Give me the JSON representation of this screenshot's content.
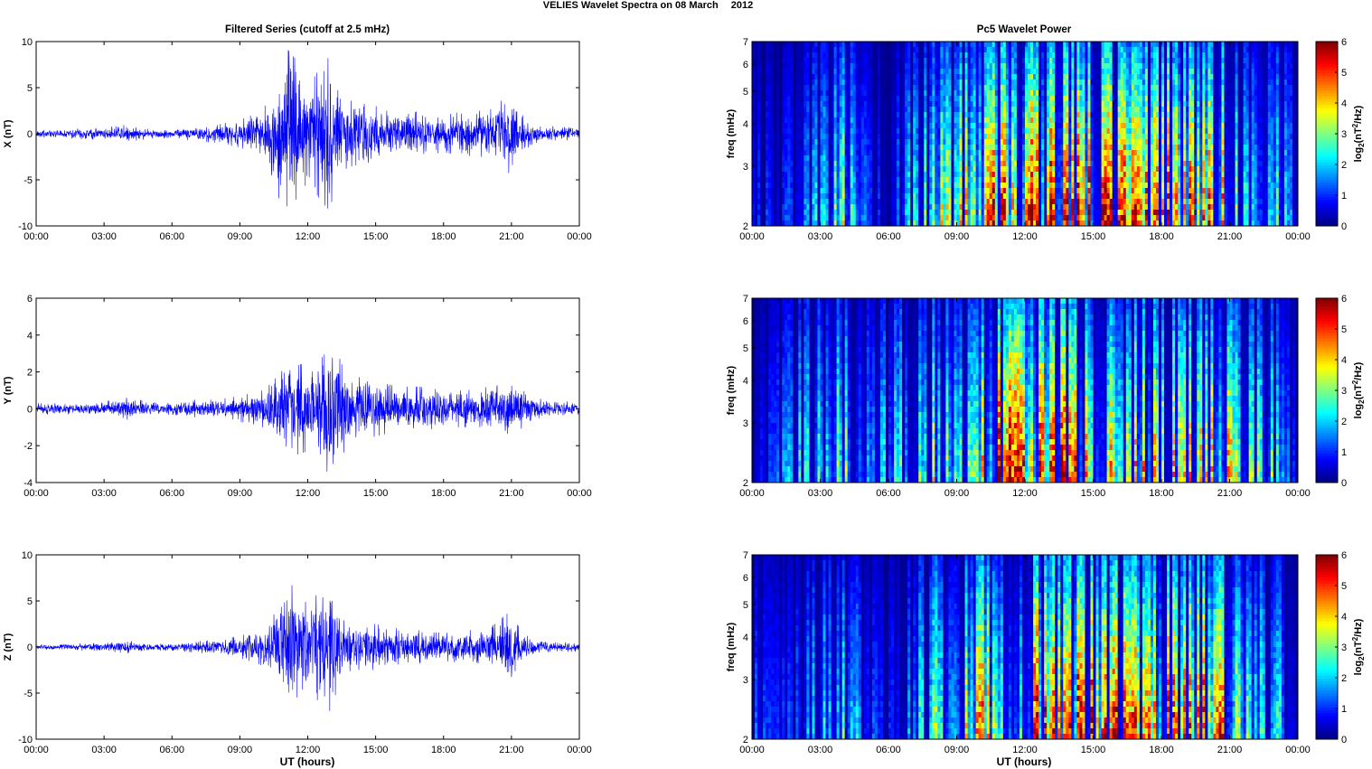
{
  "figure": {
    "title_left": "VELIES Wavelet Spectra on 08 March",
    "title_right": "2012",
    "left_column_title": "Filtered Series (cutoff at 2.5 mHz)",
    "right_column_title": "Pc5 Wavelet Power",
    "xlabel": "UT (hours)"
  },
  "colors": {
    "trace": "#0000ff",
    "jet": [
      "#00008f",
      "#0000ff",
      "#00ffff",
      "#ffff00",
      "#ff0000",
      "#800000"
    ]
  },
  "chart_data": [
    {
      "type": "line",
      "ylabel": "X (nT)",
      "ylim": [
        -10,
        10
      ],
      "yticks": [
        "10",
        "5",
        "0",
        "-5",
        "-10"
      ],
      "xticks": [
        "00:00",
        "03:00",
        "06:00",
        "09:00",
        "12:00",
        "15:00",
        "18:00",
        "21:00",
        "00:00"
      ],
      "x_range_hours": [
        0,
        24
      ],
      "grid": false,
      "series": [
        {
          "x_hours": [
            0,
            1,
            2,
            3,
            4,
            5,
            6,
            7,
            8,
            9,
            10,
            10.5,
            11,
            11.5,
            12,
            12.5,
            13,
            13.5,
            14,
            15,
            16,
            17,
            18,
            19,
            20,
            20.5,
            21,
            21.5,
            22,
            23,
            24
          ],
          "amplitude_nT": [
            0.4,
            0.4,
            0.6,
            0.6,
            1.0,
            0.5,
            0.5,
            0.8,
            1.0,
            1.5,
            2.5,
            5.0,
            9.5,
            8.0,
            5.0,
            7.0,
            8.5,
            4.0,
            3.5,
            3.0,
            2.5,
            2.5,
            2.0,
            2.5,
            2.5,
            3.5,
            4.5,
            2.0,
            1.0,
            0.8,
            0.6
          ]
        }
      ]
    },
    {
      "type": "line",
      "ylabel": "Y (nT)",
      "ylim": [
        -4,
        6
      ],
      "yticks": [
        "6",
        "4",
        "2",
        "0",
        "-2",
        "-4"
      ],
      "xticks": [
        "00:00",
        "03:00",
        "06:00",
        "09:00",
        "12:00",
        "15:00",
        "18:00",
        "21:00",
        "00:00"
      ],
      "x_range_hours": [
        0,
        24
      ],
      "grid": false,
      "series": [
        {
          "x_hours": [
            0,
            1,
            2,
            3,
            4,
            5,
            6,
            7,
            8,
            9,
            10,
            10.5,
            11,
            11.5,
            12,
            12.5,
            13,
            13.5,
            14,
            15,
            16,
            17,
            18,
            19,
            20,
            20.5,
            21,
            21.5,
            22,
            23,
            24
          ],
          "amplitude_nT": [
            0.3,
            0.3,
            0.3,
            0.4,
            0.6,
            0.4,
            0.3,
            0.5,
            0.5,
            0.7,
            1.0,
            1.5,
            2.8,
            2.5,
            2.3,
            2.8,
            3.8,
            2.5,
            1.8,
            1.5,
            1.2,
            1.2,
            1.0,
            1.0,
            1.2,
            1.3,
            1.6,
            1.0,
            0.6,
            0.4,
            0.4
          ]
        }
      ]
    },
    {
      "type": "line",
      "ylabel": "Z (nT)",
      "ylim": [
        -10,
        10
      ],
      "yticks": [
        "10",
        "5",
        "0",
        "-5",
        "-10"
      ],
      "xticks": [
        "00:00",
        "03:00",
        "06:00",
        "09:00",
        "12:00",
        "15:00",
        "18:00",
        "21:00",
        "00:00"
      ],
      "x_range_hours": [
        0,
        24
      ],
      "grid": false,
      "series": [
        {
          "x_hours": [
            0,
            1,
            2,
            3,
            4,
            5,
            6,
            7,
            8,
            9,
            10,
            10.5,
            11,
            11.5,
            12,
            12.5,
            13,
            13.5,
            14,
            15,
            16,
            17,
            18,
            19,
            20,
            20.5,
            21,
            21.5,
            22,
            23,
            24
          ],
          "amplitude_nT": [
            0.3,
            0.3,
            0.4,
            0.4,
            0.7,
            0.4,
            0.4,
            0.6,
            0.8,
            1.2,
            2.0,
            3.5,
            7.0,
            6.5,
            4.5,
            6.0,
            7.0,
            3.0,
            2.5,
            2.5,
            2.0,
            1.8,
            1.5,
            1.8,
            2.0,
            3.0,
            4.0,
            1.5,
            0.8,
            0.5,
            0.5
          ]
        }
      ]
    },
    {
      "type": "heatmap",
      "ylabel": "freq (mHz)",
      "ylim": [
        2,
        7
      ],
      "yscale": "log",
      "yticks": [
        "7",
        "6",
        "5",
        "4",
        "3",
        "2"
      ],
      "xticks": [
        "00:00",
        "03:00",
        "06:00",
        "09:00",
        "12:00",
        "15:00",
        "18:00",
        "21:00",
        "00:00"
      ],
      "x_range_hours": [
        0,
        24
      ],
      "colorbar_label": "log2(nT2/Hz)",
      "clim": [
        0,
        6
      ],
      "cticks": [
        "6",
        "5",
        "4",
        "3",
        "2",
        "1",
        "0"
      ],
      "x_hours": [
        0,
        1,
        2,
        3,
        4,
        5,
        6,
        7,
        8,
        9,
        10,
        10.5,
        11,
        11.5,
        12,
        12.5,
        13,
        13.5,
        14,
        15,
        16,
        17,
        18,
        19,
        20,
        20.5,
        21,
        21.5,
        22,
        23,
        24
      ],
      "activity": [
        1.5,
        1.0,
        1.5,
        2.5,
        3.5,
        1.5,
        1.0,
        2.5,
        3.5,
        4.0,
        5.0,
        6.0,
        6.0,
        6.0,
        6.0,
        6.0,
        6.0,
        6.0,
        6.0,
        6.0,
        5.5,
        5.5,
        5.5,
        5.5,
        5.5,
        5.5,
        5.0,
        3.0,
        3.0,
        3.0,
        1.5
      ]
    },
    {
      "type": "heatmap",
      "ylabel": "freq (mHz)",
      "ylim": [
        2,
        7
      ],
      "yscale": "log",
      "yticks": [
        "7",
        "6",
        "5",
        "4",
        "3",
        "2"
      ],
      "xticks": [
        "00:00",
        "03:00",
        "06:00",
        "09:00",
        "12:00",
        "15:00",
        "18:00",
        "21:00",
        "00:00"
      ],
      "x_range_hours": [
        0,
        24
      ],
      "colorbar_label": "log2(nT2/Hz)",
      "clim": [
        0,
        6
      ],
      "cticks": [
        "6",
        "5",
        "4",
        "3",
        "2",
        "1",
        "0"
      ],
      "x_hours": [
        0,
        1,
        2,
        3,
        4,
        5,
        6,
        7,
        8,
        9,
        10,
        10.5,
        11,
        11.5,
        12,
        12.5,
        13,
        13.5,
        14,
        15,
        16,
        17,
        18,
        19,
        20,
        20.5,
        21,
        21.5,
        22,
        23,
        24
      ],
      "activity": [
        0.5,
        1.5,
        2.5,
        3.0,
        3.5,
        2.5,
        2.5,
        3.5,
        4.0,
        4.5,
        5.0,
        5.5,
        6.0,
        6.0,
        6.0,
        6.0,
        6.0,
        6.0,
        5.5,
        5.0,
        4.5,
        4.5,
        4.5,
        4.5,
        4.5,
        4.5,
        4.5,
        3.5,
        3.5,
        3.0,
        0.5
      ]
    },
    {
      "type": "heatmap",
      "ylabel": "freq (mHz)",
      "ylim": [
        2,
        7
      ],
      "yscale": "log",
      "yticks": [
        "7",
        "6",
        "5",
        "4",
        "3",
        "2"
      ],
      "xticks": [
        "00:00",
        "03:00",
        "06:00",
        "09:00",
        "12:00",
        "15:00",
        "18:00",
        "21:00",
        "00:00"
      ],
      "x_range_hours": [
        0,
        24
      ],
      "colorbar_label": "log2(nT2/Hz)",
      "clim": [
        0,
        6
      ],
      "cticks": [
        "6",
        "5",
        "4",
        "3",
        "2",
        "1",
        "0"
      ],
      "x_hours": [
        0,
        1,
        2,
        3,
        4,
        5,
        6,
        7,
        8,
        9,
        10,
        10.5,
        11,
        11.5,
        12,
        12.5,
        13,
        13.5,
        14,
        15,
        16,
        17,
        18,
        19,
        20,
        20.5,
        21,
        21.5,
        22,
        23,
        24
      ],
      "activity": [
        1.5,
        1.0,
        1.5,
        2.5,
        3.5,
        1.5,
        1.0,
        2.5,
        3.5,
        4.0,
        5.0,
        6.0,
        6.0,
        6.0,
        6.0,
        6.0,
        6.0,
        6.0,
        6.0,
        6.0,
        5.5,
        5.5,
        5.5,
        5.5,
        5.5,
        5.5,
        5.0,
        3.0,
        3.0,
        3.0,
        1.5
      ]
    }
  ]
}
